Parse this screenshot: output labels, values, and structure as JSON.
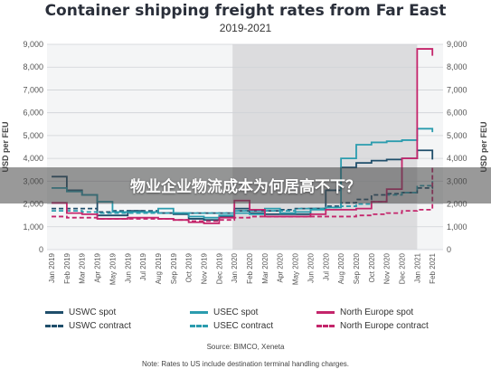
{
  "overlay": {
    "headline": "物业企业物流成本为何居高不下？"
  },
  "chart_data": {
    "type": "line",
    "title": "Container shipping freight rates from Far East",
    "subtitle": "2019-2021",
    "ylabel": "USD per FEU",
    "ylabel_right": "USD per FEU",
    "ylim": [
      0,
      9000
    ],
    "yticks": [
      "0",
      "1,000",
      "2,000",
      "3,000",
      "4,000",
      "5,000",
      "6,000",
      "7,000",
      "8,000",
      "9,000"
    ],
    "x_labels": [
      "Jan 2019",
      "Feb 2019",
      "Mar 2019",
      "Apr 2019",
      "May 2019",
      "Jun 2019",
      "Jul 2019",
      "Aug 2019",
      "Sep 2019",
      "Oct 2019",
      "Nov 2019",
      "Dec 2019",
      "Jan 2020",
      "Feb 2020",
      "Mar 2020",
      "Apr 2020",
      "May 2020",
      "Jun 2020",
      "Jul 2020",
      "Aug 2020",
      "Sep 2020",
      "Oct 2020",
      "Nov 2020",
      "Dec 2020",
      "Jan 2021",
      "Feb 2021"
    ],
    "shaded_period": [
      "Jan 2020",
      "Jan 2021"
    ],
    "grid": true,
    "series": [
      {
        "name": "USWC spot",
        "color": "#1f4e6b",
        "dash": "solid",
        "values": [
          3200,
          2600,
          2400,
          1500,
          1500,
          1700,
          1650,
          1600,
          1550,
          1350,
          1300,
          1450,
          1800,
          1600,
          1550,
          1550,
          1550,
          1800,
          2600,
          3600,
          3800,
          3900,
          3950,
          4000,
          4350,
          3950
        ]
      },
      {
        "name": "USWC contract",
        "color": "#1f4e6b",
        "dash": "dashed",
        "values": [
          1800,
          1800,
          1800,
          1650,
          1700,
          1700,
          1700,
          1600,
          1600,
          1600,
          1600,
          1600,
          1700,
          1700,
          1700,
          1750,
          1800,
          1800,
          1900,
          2050,
          2200,
          2400,
          2450,
          2500,
          2700,
          2800
        ]
      },
      {
        "name": "USEC spot",
        "color": "#2b9cae",
        "dash": "solid",
        "values": [
          2700,
          2550,
          2400,
          2100,
          1650,
          1650,
          1650,
          1800,
          1600,
          1450,
          1400,
          1500,
          1600,
          1550,
          1800,
          1600,
          1650,
          1750,
          1850,
          4000,
          4600,
          4700,
          4750,
          4800,
          5300,
          5150
        ]
      },
      {
        "name": "USEC contract",
        "color": "#2b9cae",
        "dash": "dashed",
        "values": [
          1700,
          1700,
          1650,
          1600,
          1600,
          1600,
          1600,
          1600,
          1600,
          1600,
          1600,
          1600,
          1700,
          1700,
          1700,
          1700,
          1800,
          1800,
          1850,
          1900,
          2000,
          2100,
          2400,
          2500,
          2800,
          3000
        ]
      },
      {
        "name": "North Europe spot",
        "color": "#c4256b",
        "dash": "solid",
        "values": [
          2050,
          1600,
          1550,
          1350,
          1350,
          1400,
          1400,
          1350,
          1300,
          1200,
          1150,
          1400,
          2150,
          1750,
          1450,
          1450,
          1450,
          1550,
          1750,
          1750,
          1800,
          2100,
          2650,
          4000,
          8800,
          8500
        ]
      },
      {
        "name": "North Europe contract",
        "color": "#c4256b",
        "dash": "dashed",
        "values": [
          1450,
          1400,
          1400,
          1350,
          1350,
          1350,
          1350,
          1350,
          1300,
          1250,
          1250,
          1300,
          1400,
          1450,
          1450,
          1450,
          1450,
          1450,
          1450,
          1450,
          1500,
          1550,
          1600,
          1700,
          1750,
          3600
        ]
      }
    ]
  },
  "footer": {
    "source": "Source: BIMCO, Xeneta",
    "note": "Note: Rates to US include destination terminal handling charges."
  }
}
